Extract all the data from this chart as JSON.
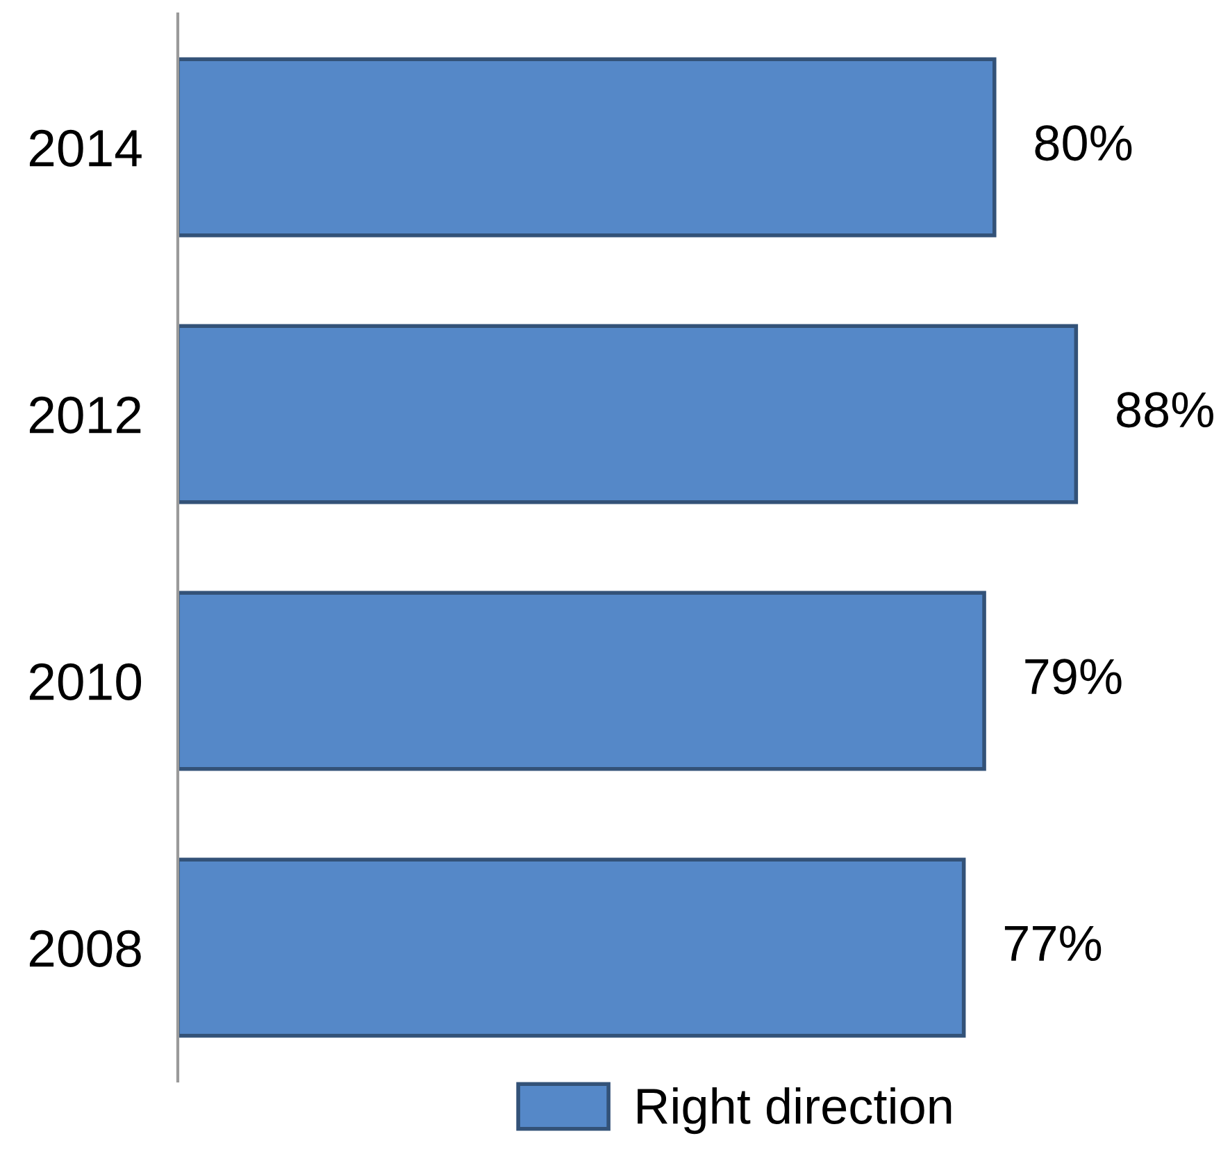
{
  "chart_data": {
    "type": "bar",
    "orientation": "horizontal",
    "categories": [
      "2014",
      "2012",
      "2010",
      "2008"
    ],
    "series": [
      {
        "name": "Right direction",
        "color": "#5588c8",
        "values": [
          80,
          88,
          79,
          77
        ],
        "value_labels": [
          "80%",
          "88%",
          "79%",
          "77%"
        ]
      }
    ],
    "legend": "bottom",
    "tick_labels": "y"
  }
}
